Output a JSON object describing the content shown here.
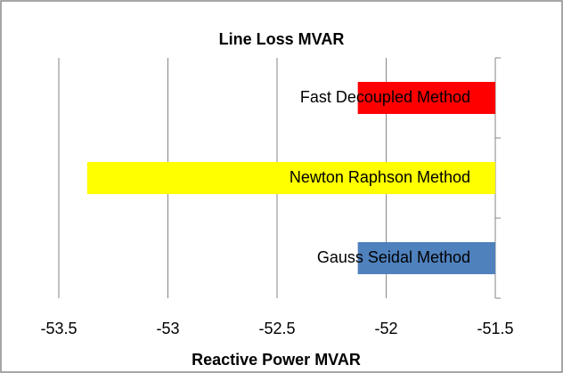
{
  "chart_data": {
    "type": "barh",
    "title": "Line Loss MVAR",
    "xlabel": "Reactive Power MVAR",
    "categories": [
      "Gauss Seidal Method",
      "Newton Raphson Method",
      "Fast Decoupled Method"
    ],
    "values": [
      -52.13,
      -53.37,
      -52.13
    ],
    "colors": [
      "#4f81bd",
      "#ffff00",
      "#ff0000"
    ],
    "xlim": [
      -53.5,
      -51.5
    ],
    "xticks": [
      -53.5,
      -53,
      -52.5,
      -52,
      -51.5
    ],
    "grid": true
  }
}
